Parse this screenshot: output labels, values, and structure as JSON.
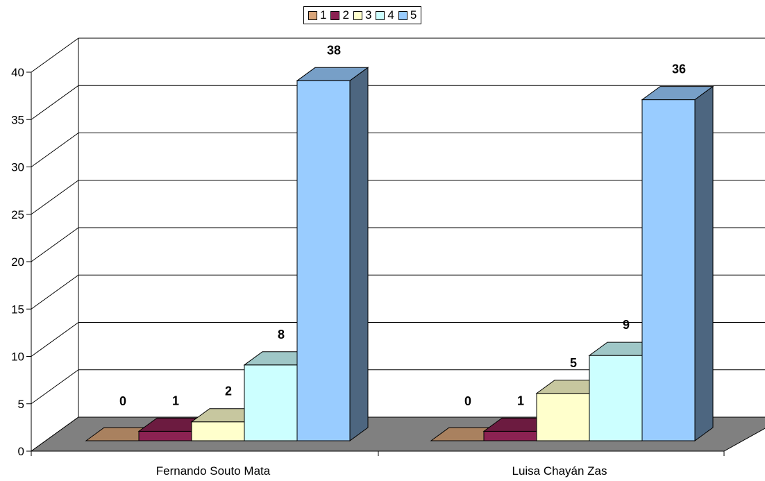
{
  "chart_data": {
    "type": "bar",
    "categories": [
      "Fernando Souto Mata",
      "Luisa Chayán Zas"
    ],
    "series": [
      {
        "name": "1",
        "values": [
          0,
          0
        ],
        "color": "#d9a57a"
      },
      {
        "name": "2",
        "values": [
          1,
          1
        ],
        "color": "#8b2252"
      },
      {
        "name": "3",
        "values": [
          2,
          5
        ],
        "color": "#ffffcc"
      },
      {
        "name": "4",
        "values": [
          8,
          9
        ],
        "color": "#ccffff"
      },
      {
        "name": "5",
        "values": [
          38,
          36
        ],
        "color": "#99ccff"
      }
    ],
    "ylim": [
      0,
      40
    ],
    "yticks": [
      "0",
      "5",
      "10",
      "15",
      "20",
      "25",
      "30",
      "35",
      "40"
    ],
    "grid": true,
    "legend": "top-center",
    "title": "",
    "xlabel": "",
    "ylabel": ""
  }
}
